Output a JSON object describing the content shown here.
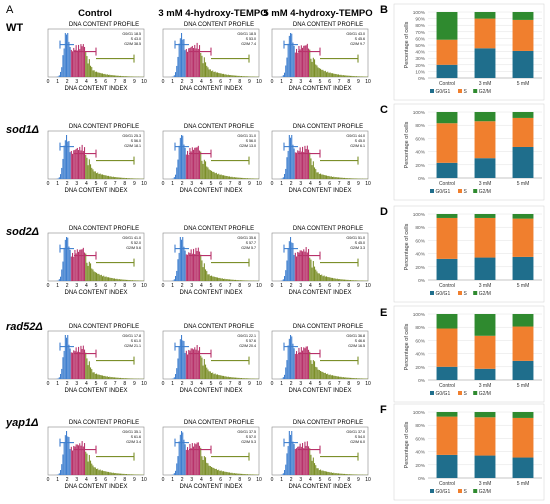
{
  "panel_labels": {
    "A": "A",
    "B": "B",
    "C": "C",
    "D": "D",
    "E": "E",
    "F": "F"
  },
  "column_headers": [
    "Control",
    "3 mM 4-hydroxy-TEMPO",
    "5 mM 4-hydroxy-TEMPO"
  ],
  "row_labels": [
    "WT",
    "sod1Δ",
    "sod2Δ",
    "rad52Δ",
    "yap1Δ"
  ],
  "histogram": {
    "title": "DNA CONTENT PROFILE",
    "xlabel": "DNA CONTENT INDEX",
    "x_ticks": [
      "0",
      "1",
      "2",
      "3",
      "4",
      "5",
      "6",
      "7",
      "8",
      "9",
      "10"
    ],
    "colors": {
      "g1": "#3f7fcf",
      "s": "#b8326a",
      "g2m": "#7c8f2a",
      "bracket_g1": "#3f7fcf",
      "bracket_s": "#b8326a",
      "bracket_g2m": "#7c8f2a"
    }
  },
  "flow_stats": [
    [
      [
        "G0/G1 18.5",
        "S 43.0",
        "G2/M 38.5"
      ],
      [
        "G0/G1 18.5",
        "S 53.0",
        "G2/M 7.4"
      ],
      [
        "G0/G1 43.0",
        "S 45.6",
        "G2/M 9.7"
      ]
    ],
    [
      [
        "G0/G1 25.3",
        "S 56.0",
        "G2/M 18.1"
      ],
      [
        "G0/G1 31.0",
        "S 56.0",
        "G2/M 13.0"
      ],
      [
        "G0/G1 44.0",
        "S 45.0",
        "G2/M 6.1"
      ]
    ],
    [
      [
        "G0/G1 41.0",
        "S 52.0",
        "G2/M 5.6"
      ],
      [
        "G0/G1 35.6",
        "S 57.7",
        "G2/M 5.7"
      ],
      [
        "G0/G1 51.0",
        "S 45.0",
        "G2/M 3.3"
      ]
    ],
    [
      [
        "G0/G1 17.8",
        "S 61.0",
        "G2/M 21.1"
      ],
      [
        "G0/G1 22.1",
        "S 57.6",
        "G2/M 20.4"
      ],
      [
        "G0/G1 36.8",
        "S 46.6",
        "G2/M 16.5"
      ]
    ],
    [
      [
        "G0/G1 35.1",
        "S 61.6",
        "G2/M 3.4"
      ],
      [
        "G0/G1 37.5",
        "S 57.0",
        "G2/M 5.3"
      ],
      [
        "G0/G1 37.0",
        "S 54.0",
        "G2/M 6.0"
      ]
    ]
  ],
  "chart_data": [
    {
      "panel": "B",
      "type": "bar",
      "stacked": true,
      "categories": [
        "Control",
        "3 mM",
        "5 mM"
      ],
      "series": [
        {
          "name": "G0/G1",
          "color": "#1f6e8c",
          "values": [
            20,
            45,
            41
          ]
        },
        {
          "name": "S",
          "color": "#f07f2e",
          "values": [
            38,
            45,
            47
          ]
        },
        {
          "name": "G2/M",
          "color": "#2f8a2f",
          "values": [
            42,
            10,
            12
          ]
        }
      ],
      "ylabel": "Percentage of cells",
      "ylim": [
        0,
        100
      ],
      "yticks": [
        "0%",
        "10%",
        "20%",
        "30%",
        "40%",
        "50%",
        "60%",
        "70%",
        "80%",
        "90%",
        "100%"
      ],
      "legend": "bottom"
    },
    {
      "panel": "C",
      "type": "bar",
      "stacked": true,
      "categories": [
        "Control",
        "3 mM",
        "5 mM"
      ],
      "series": [
        {
          "name": "G0/G1",
          "color": "#1f6e8c",
          "values": [
            23,
            30,
            47
          ]
        },
        {
          "name": "S",
          "color": "#f07f2e",
          "values": [
            60,
            56,
            44
          ]
        },
        {
          "name": "G2/M",
          "color": "#2f8a2f",
          "values": [
            17,
            14,
            9
          ]
        }
      ],
      "ylabel": "Percentage of cells",
      "ylim": [
        0,
        100
      ],
      "yticks": [
        "0%",
        "20%",
        "40%",
        "60%",
        "80%",
        "100%"
      ],
      "legend": "bottom"
    },
    {
      "panel": "D",
      "type": "bar",
      "stacked": true,
      "categories": [
        "Control",
        "3 mM",
        "5 mM"
      ],
      "series": [
        {
          "name": "G0/G1",
          "color": "#1f6e8c",
          "values": [
            32,
            34,
            35
          ]
        },
        {
          "name": "S",
          "color": "#f07f2e",
          "values": [
            62,
            60,
            58
          ]
        },
        {
          "name": "G2/M",
          "color": "#2f8a2f",
          "values": [
            6,
            6,
            7
          ]
        }
      ],
      "ylabel": "Percentage of cells",
      "ylim": [
        0,
        100
      ],
      "yticks": [
        "0%",
        "20%",
        "40%",
        "60%",
        "80%",
        "100%"
      ],
      "legend": "bottom"
    },
    {
      "panel": "E",
      "type": "bar",
      "stacked": true,
      "categories": [
        "Control",
        "3 mM",
        "5 mM"
      ],
      "series": [
        {
          "name": "G0/G1",
          "color": "#1f6e8c",
          "values": [
            20,
            17,
            29
          ]
        },
        {
          "name": "S",
          "color": "#f07f2e",
          "values": [
            58,
            50,
            52
          ]
        },
        {
          "name": "G2/M",
          "color": "#2f8a2f",
          "values": [
            22,
            33,
            19
          ]
        }
      ],
      "ylabel": "Percentage of cells",
      "ylim": [
        0,
        100
      ],
      "yticks": [
        "0%",
        "20%",
        "40%",
        "60%",
        "80%",
        "100%"
      ],
      "legend": "bottom"
    },
    {
      "panel": "F",
      "type": "bar",
      "stacked": true,
      "categories": [
        "Control",
        "3 mM",
        "5 mM"
      ],
      "series": [
        {
          "name": "G0/G1",
          "color": "#1f6e8c",
          "values": [
            35,
            34,
            31
          ]
        },
        {
          "name": "S",
          "color": "#f07f2e",
          "values": [
            58,
            58,
            60
          ]
        },
        {
          "name": "G2/M",
          "color": "#2f8a2f",
          "values": [
            7,
            8,
            9
          ]
        }
      ],
      "ylabel": "Percentage of cells",
      "ylim": [
        0,
        100
      ],
      "yticks": [
        "0%",
        "20%",
        "40%",
        "60%",
        "80%",
        "100%"
      ],
      "legend": "bottom"
    }
  ]
}
